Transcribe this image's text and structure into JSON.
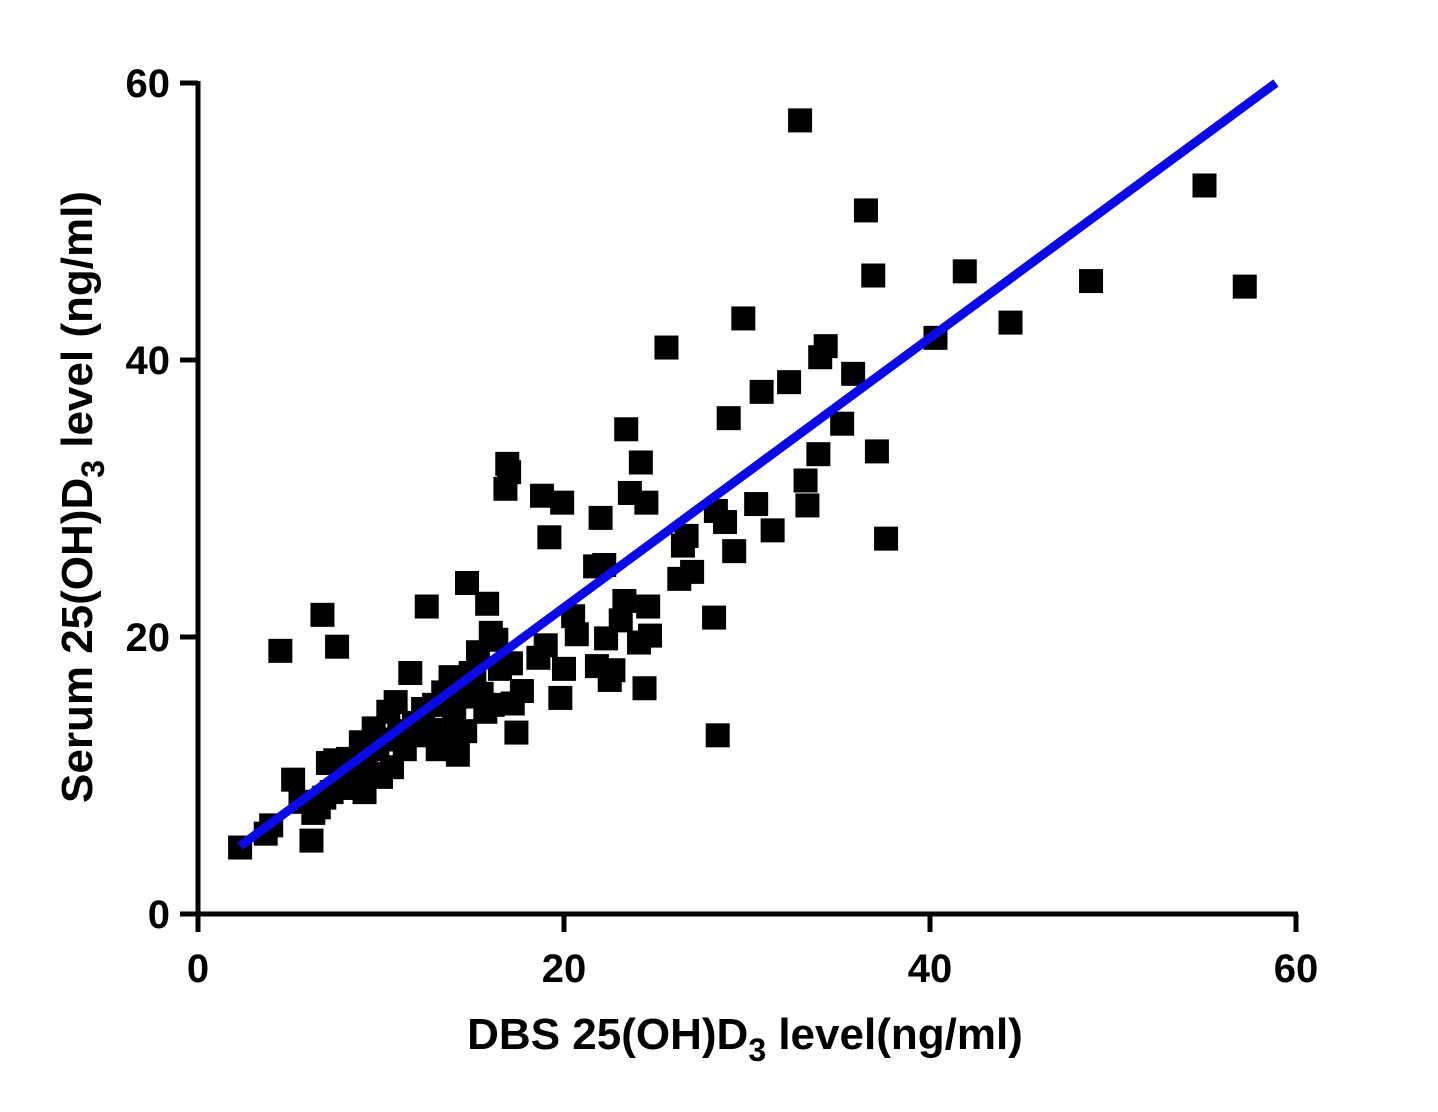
{
  "chart_data": {
    "type": "scatter",
    "title": "",
    "xlabel": {
      "main": "DBS 25(OH)D",
      "sub": "3",
      "suffix": " level(ng/ml)"
    },
    "ylabel": {
      "main": "Serum 25(OH)D",
      "sub": "3",
      "suffix": " level (ng/ml)"
    },
    "xlim": [
      0,
      60
    ],
    "ylim": [
      0,
      60
    ],
    "xticks": [
      0,
      20,
      40,
      60
    ],
    "yticks": [
      0,
      20,
      40,
      60
    ],
    "x_tick_labels": [
      "0",
      "20",
      "40",
      "60"
    ],
    "y_tick_labels": [
      "0",
      "20",
      "40",
      "60"
    ],
    "grid": false,
    "colors": {
      "points": "#000000",
      "fit_line": "#0a0ae6",
      "axes": "#000000"
    },
    "fit_line": {
      "x": [
        2.3,
        58.9
      ],
      "y": [
        4.9,
        60.0
      ]
    },
    "series": [
      {
        "marker": "square",
        "points": [
          [
            2.3,
            4.8
          ],
          [
            3.7,
            5.8
          ],
          [
            4.0,
            6.4
          ],
          [
            4.5,
            19.0
          ],
          [
            5.2,
            9.7
          ],
          [
            5.6,
            8.1
          ],
          [
            6.2,
            5.3
          ],
          [
            6.3,
            7.3
          ],
          [
            6.6,
            7.7
          ],
          [
            6.8,
            21.6
          ],
          [
            6.9,
            8.4
          ],
          [
            7.1,
            10.9
          ],
          [
            7.3,
            8.8
          ],
          [
            7.5,
            11.1
          ],
          [
            7.6,
            19.3
          ],
          [
            7.8,
            9.1
          ],
          [
            8.0,
            10.2
          ],
          [
            8.2,
            11.2
          ],
          [
            8.5,
            9.6
          ],
          [
            8.7,
            10.7
          ],
          [
            8.9,
            12.4
          ],
          [
            9.1,
            8.8
          ],
          [
            9.2,
            11.3
          ],
          [
            9.4,
            10.1
          ],
          [
            9.6,
            13.4
          ],
          [
            9.8,
            11.9
          ],
          [
            10.0,
            9.9
          ],
          [
            10.2,
            12.6
          ],
          [
            10.4,
            14.6
          ],
          [
            10.6,
            10.6
          ],
          [
            10.8,
            15.3
          ],
          [
            11.0,
            13.2
          ],
          [
            11.3,
            11.9
          ],
          [
            11.6,
            17.4
          ],
          [
            11.8,
            13.8
          ],
          [
            12.0,
            12.9
          ],
          [
            12.3,
            14.8
          ],
          [
            12.5,
            22.2
          ],
          [
            12.7,
            13.3
          ],
          [
            12.9,
            15.1
          ],
          [
            13.1,
            11.9
          ],
          [
            13.4,
            16.0
          ],
          [
            13.6,
            12.6
          ],
          [
            13.8,
            17.1
          ],
          [
            14.0,
            14.3
          ],
          [
            14.2,
            11.5
          ],
          [
            14.4,
            15.7
          ],
          [
            14.6,
            13.2
          ],
          [
            14.7,
            23.9
          ],
          [
            14.9,
            17.4
          ],
          [
            15.1,
            16.9
          ],
          [
            15.3,
            18.9
          ],
          [
            15.5,
            15.9
          ],
          [
            15.7,
            14.6
          ],
          [
            15.8,
            22.4
          ],
          [
            16.0,
            20.3
          ],
          [
            16.1,
            15.1
          ],
          [
            16.3,
            19.8
          ],
          [
            16.5,
            17.7
          ],
          [
            16.8,
            30.7
          ],
          [
            16.9,
            32.5
          ],
          [
            17.0,
            31.9
          ],
          [
            17.1,
            18.1
          ],
          [
            17.2,
            15.2
          ],
          [
            17.4,
            13.1
          ],
          [
            17.7,
            16.1
          ],
          [
            18.6,
            18.5
          ],
          [
            18.8,
            30.2
          ],
          [
            19.0,
            19.4
          ],
          [
            19.2,
            27.2
          ],
          [
            19.8,
            15.6
          ],
          [
            19.9,
            29.7
          ],
          [
            20.0,
            17.7
          ],
          [
            20.5,
            21.5
          ],
          [
            20.7,
            20.2
          ],
          [
            21.7,
            25.1
          ],
          [
            21.8,
            17.9
          ],
          [
            22.0,
            28.6
          ],
          [
            22.2,
            25.2
          ],
          [
            22.3,
            19.9
          ],
          [
            22.5,
            16.9
          ],
          [
            22.7,
            17.6
          ],
          [
            23.1,
            21.2
          ],
          [
            23.3,
            22.6
          ],
          [
            23.4,
            35.0
          ],
          [
            23.6,
            30.4
          ],
          [
            24.1,
            19.6
          ],
          [
            24.2,
            32.6
          ],
          [
            24.4,
            16.3
          ],
          [
            24.5,
            29.7
          ],
          [
            24.6,
            22.2
          ],
          [
            24.7,
            20.1
          ],
          [
            25.6,
            40.9
          ],
          [
            26.3,
            24.2
          ],
          [
            26.5,
            26.6
          ],
          [
            26.7,
            27.3
          ],
          [
            27.0,
            24.7
          ],
          [
            28.2,
            21.4
          ],
          [
            28.3,
            29.1
          ],
          [
            28.4,
            12.9
          ],
          [
            28.8,
            28.3
          ],
          [
            29.0,
            35.8
          ],
          [
            29.3,
            26.2
          ],
          [
            29.8,
            43.0
          ],
          [
            30.5,
            29.6
          ],
          [
            30.8,
            37.7
          ],
          [
            31.4,
            27.7
          ],
          [
            32.3,
            38.4
          ],
          [
            32.9,
            57.3
          ],
          [
            33.2,
            31.3
          ],
          [
            33.3,
            29.5
          ],
          [
            33.9,
            33.2
          ],
          [
            34.0,
            40.2
          ],
          [
            34.3,
            41.0
          ],
          [
            35.2,
            35.4
          ],
          [
            35.8,
            39.0
          ],
          [
            36.5,
            50.8
          ],
          [
            36.9,
            46.1
          ],
          [
            37.1,
            33.4
          ],
          [
            37.6,
            27.1
          ],
          [
            40.3,
            41.6
          ],
          [
            41.9,
            46.4
          ],
          [
            44.4,
            42.7
          ],
          [
            48.8,
            45.7
          ],
          [
            55.0,
            52.6
          ],
          [
            57.2,
            45.3
          ]
        ]
      }
    ]
  }
}
